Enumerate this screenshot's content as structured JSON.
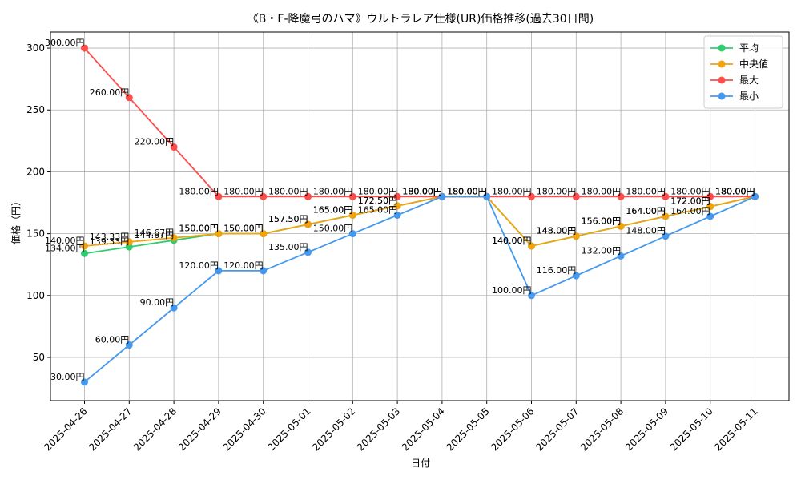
{
  "chart_data": {
    "type": "line",
    "title": "《B・F-降魔弓のハマ》ウルトラレア仕様(UR)価格推移(過去30日間)",
    "xlabel": "日付",
    "ylabel": "価格（円）",
    "categories": [
      "2025-04-26",
      "2025-04-27",
      "2025-04-28",
      "2025-04-29",
      "2025-04-30",
      "2025-05-01",
      "2025-05-02",
      "2025-05-03",
      "2025-05-04",
      "2025-05-05",
      "2025-05-06",
      "2025-05-07",
      "2025-05-08",
      "2025-05-09",
      "2025-05-10",
      "2025-05-11"
    ],
    "ylim": [
      15,
      313
    ],
    "yticks": [
      50,
      100,
      150,
      200,
      250,
      300
    ],
    "grid": true,
    "legend_position": "top-right",
    "label_suffix": "円",
    "series": [
      {
        "name": "平均",
        "color": "#2ecc71",
        "values": [
          134.0,
          139.33,
          144.67,
          150.0,
          150.0,
          157.5,
          165.0,
          172.5,
          180.0,
          180.0,
          140.0,
          148.0,
          156.0,
          164.0,
          172.0,
          180.0
        ]
      },
      {
        "name": "中央値",
        "color": "#f1a20d",
        "values": [
          140.0,
          143.33,
          146.67,
          150.0,
          150.0,
          157.5,
          165.0,
          172.5,
          180.0,
          180.0,
          140.0,
          148.0,
          156.0,
          164.0,
          172.0,
          180.0
        ]
      },
      {
        "name": "最大",
        "color": "#ff4d4d",
        "values": [
          300.0,
          260.0,
          220.0,
          180.0,
          180.0,
          180.0,
          180.0,
          180.0,
          180.0,
          180.0,
          180.0,
          180.0,
          180.0,
          180.0,
          180.0,
          180.0
        ]
      },
      {
        "name": "最小",
        "color": "#4499ee",
        "values": [
          30.0,
          60.0,
          90.0,
          120.0,
          120.0,
          135.0,
          150.0,
          165.0,
          180.0,
          180.0,
          100.0,
          116.0,
          132.0,
          148.0,
          164.0,
          180.0
        ]
      }
    ]
  }
}
